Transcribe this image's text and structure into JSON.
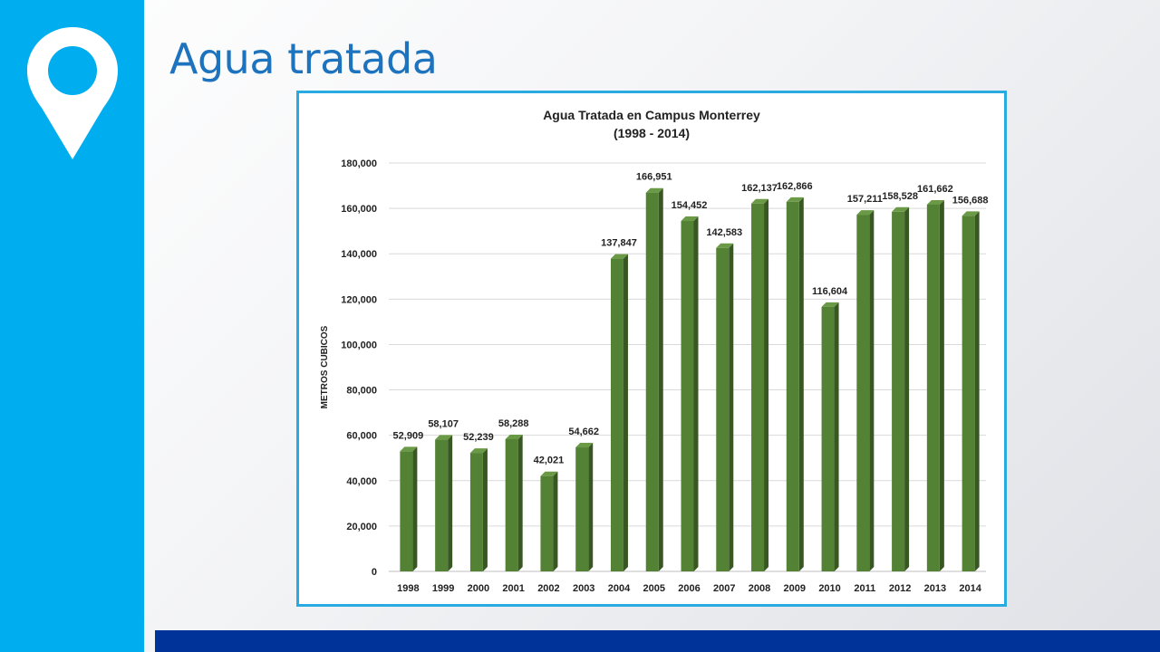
{
  "slide": {
    "title": "Agua tratada"
  },
  "colors": {
    "sidebar": "#00adef",
    "title": "#1e73be",
    "bottom_bar": "#003399",
    "chart_border": "#29abe2",
    "bar_front": "#548235",
    "bar_side": "#385723"
  },
  "icons": {
    "sidebar": "location-pin-icon"
  },
  "chart_data": {
    "type": "bar",
    "title": "Agua Tratada  en Campus Monterrey",
    "subtitle": "(1998 - 2014)",
    "xlabel": "",
    "ylabel": "METROS CUBICOS",
    "ylim": [
      0,
      180000
    ],
    "yticks": [
      "0",
      "20,000",
      "40,000",
      "60,000",
      "80,000",
      "100,000",
      "120,000",
      "140,000",
      "160,000",
      "180,000"
    ],
    "categories": [
      "1998",
      "1999",
      "2000",
      "2001",
      "2002",
      "2003",
      "2004",
      "2005",
      "2006",
      "2007",
      "2008",
      "2009",
      "2010",
      "2011",
      "2012",
      "2013",
      "2014"
    ],
    "values": [
      52909,
      58107,
      52239,
      58288,
      42021,
      54662,
      137847,
      166951,
      154452,
      142583,
      162137,
      162866,
      116604,
      157211,
      158528,
      161662,
      156688
    ],
    "data_labels": [
      "52,909",
      "58,107",
      "52,239",
      "58,288",
      "42,021",
      "54,662",
      "137,847",
      "166,951",
      "154,452",
      "142,583",
      "162,137",
      "162,866",
      "116,604",
      "157,211",
      "158,528",
      "161,662",
      "156,688"
    ],
    "grid": true,
    "legend": "none"
  }
}
